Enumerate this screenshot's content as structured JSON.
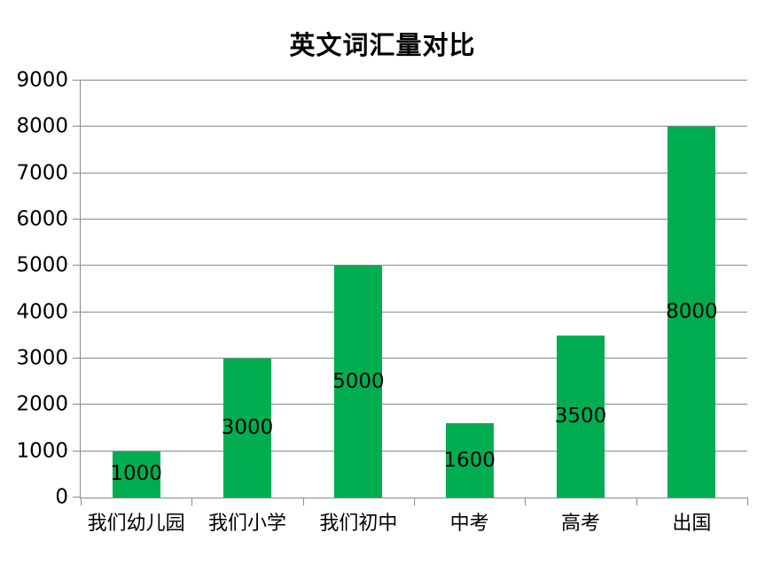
{
  "chart_data": {
    "type": "bar",
    "title": "英文词汇量对比",
    "categories": [
      "我们幼儿园",
      "我们小学",
      "我们初中",
      "中考",
      "高考",
      "出国"
    ],
    "values": [
      1000,
      3000,
      5000,
      1600,
      3500,
      8000
    ],
    "xlabel": "",
    "ylabel": "",
    "ylim": [
      0,
      9000
    ],
    "ytick_step": 1000,
    "ytick_labels": [
      "0",
      "1000",
      "2000",
      "3000",
      "4000",
      "5000",
      "6000",
      "7000",
      "8000",
      "9000"
    ],
    "grid": true,
    "legend_position": "none",
    "data_labels_position": "inside-center",
    "colors": {
      "bar": "#00AE51",
      "gridline": "#8A8A8A",
      "axis": "#8A8A8A",
      "text": "#000000",
      "background": "#FFFFFF"
    }
  }
}
